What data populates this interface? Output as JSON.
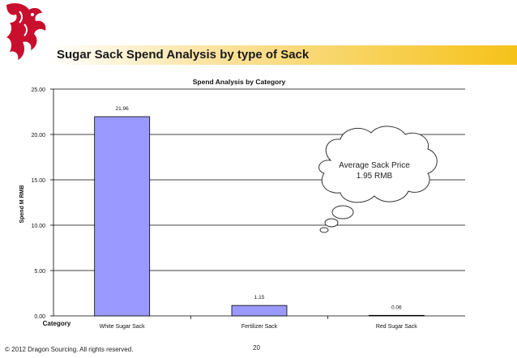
{
  "slide": {
    "title": "Sugar Sack Spend Analysis by type of Sack",
    "footer": "© 2012 Dragon Sourcing. All rights reserved.",
    "page_number": "20"
  },
  "callout": {
    "line1": "Average Sack Price",
    "line2": "1.95 RMB"
  },
  "colors": {
    "bar": "#9999ff",
    "logo": "#c8102e",
    "accent": "#f5c21a"
  },
  "icons": {
    "logo": "dragon-logo-icon"
  },
  "chart_data": {
    "type": "bar",
    "title": "Spend Analysis by Category",
    "xlabel": "Category",
    "ylabel": "Spend M RMB",
    "categories": [
      "White Sugar Sack",
      "Fertilizer Sack",
      "Red Sugar Sack"
    ],
    "values": [
      21.96,
      1.15,
      0.06
    ],
    "value_labels": [
      "21.96",
      "1.15",
      "0.06"
    ],
    "ylim": [
      0,
      25
    ],
    "yticks": [
      "0.00",
      "5.00",
      "10.00",
      "15.00",
      "20.00",
      "25.00"
    ],
    "grid": true,
    "legend": "none"
  }
}
